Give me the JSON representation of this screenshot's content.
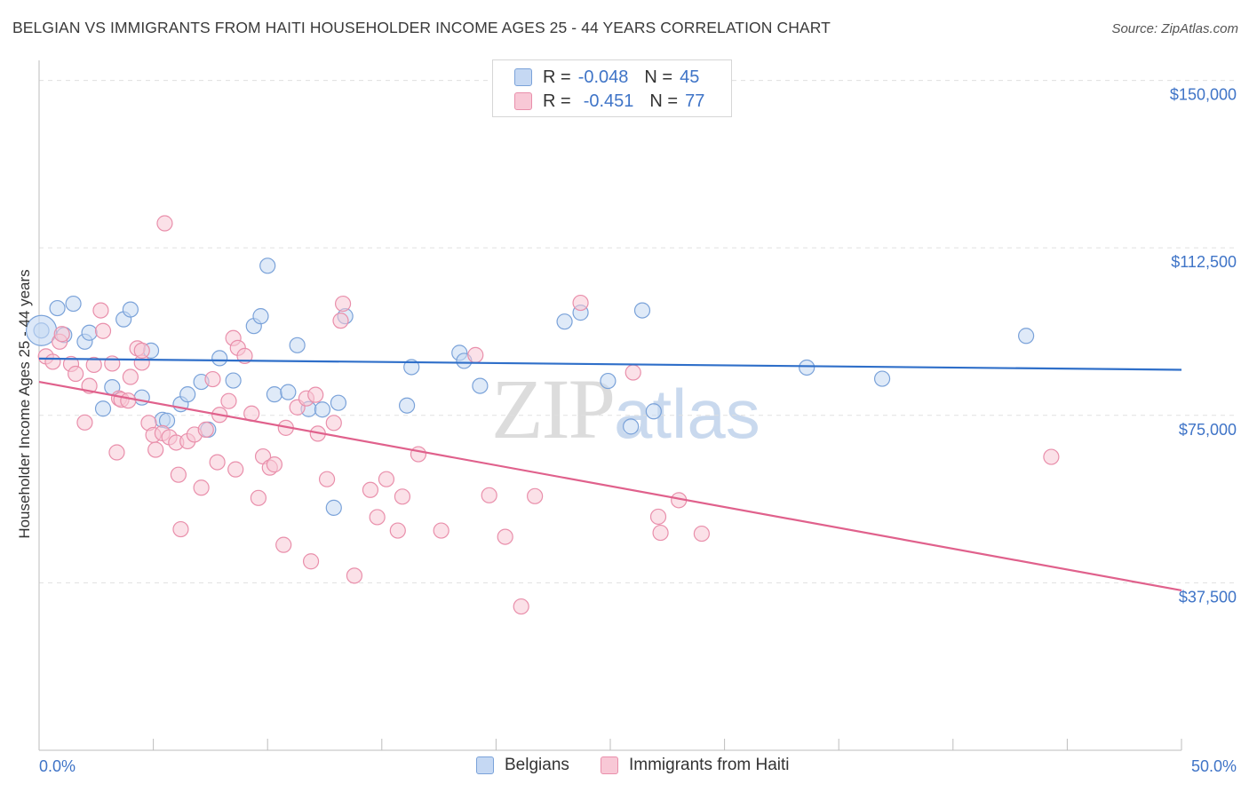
{
  "title": "BELGIAN VS IMMIGRANTS FROM HAITI HOUSEHOLDER INCOME AGES 25 - 44 YEARS CORRELATION CHART",
  "source": "Source: ZipAtlas.com",
  "watermark": {
    "zip": "ZIP",
    "atlas": "atlas"
  },
  "legend": {
    "rows": [
      {
        "r_label": "R =",
        "r_value": "-0.048",
        "n_label": "N =",
        "n_value": "45"
      },
      {
        "r_label": "R =",
        "r_value": "-0.451",
        "n_label": "N =",
        "n_value": "77"
      }
    ]
  },
  "colors": {
    "belgians_fill": "#c5d8f3",
    "belgians_stroke": "#7aa2d9",
    "belgians_line": "#2f6fc9",
    "haiti_fill": "#f8c8d6",
    "haiti_stroke": "#e98fab",
    "haiti_line": "#e0618c",
    "tick_label": "#3f74c7",
    "grid": "#e0e0e0"
  },
  "chart_data": {
    "type": "scatter",
    "title": "BELGIAN VS IMMIGRANTS FROM HAITI HOUSEHOLDER INCOME AGES 25 - 44 YEARS CORRELATION CHART",
    "xlabel": "",
    "ylabel": "Householder Income Ages 25 - 44 years",
    "xlim": [
      0,
      50
    ],
    "ylim": [
      0,
      152500
    ],
    "x_tick_labels": [
      "0.0%",
      "50.0%"
    ],
    "y_ticks": [
      37500,
      75000,
      112500,
      150000
    ],
    "y_tick_labels": [
      "$37,500",
      "$75,000",
      "$112,500",
      "$150,000"
    ],
    "grid": true,
    "legend_position": "top-center",
    "series": [
      {
        "name": "Belgians",
        "r": -0.048,
        "n": 45,
        "trend": {
          "x": [
            0,
            50
          ],
          "y": [
            87700,
            85200
          ]
        },
        "points": [
          [
            0.1,
            94000
          ],
          [
            0.8,
            99000
          ],
          [
            1.5,
            100000
          ],
          [
            1.1,
            93000
          ],
          [
            2.0,
            91500
          ],
          [
            2.2,
            93500
          ],
          [
            3.7,
            96500
          ],
          [
            4.0,
            98700
          ],
          [
            4.9,
            89500
          ],
          [
            3.2,
            81300
          ],
          [
            2.8,
            76500
          ],
          [
            4.5,
            79000
          ],
          [
            5.4,
            74000
          ],
          [
            5.6,
            73800
          ],
          [
            6.2,
            77500
          ],
          [
            6.5,
            79700
          ],
          [
            7.1,
            82500
          ],
          [
            7.4,
            71800
          ],
          [
            7.9,
            87800
          ],
          [
            8.5,
            82800
          ],
          [
            9.4,
            95000
          ],
          [
            9.7,
            97200
          ],
          [
            10.0,
            108500
          ],
          [
            10.3,
            79700
          ],
          [
            10.9,
            80200
          ],
          [
            11.3,
            90700
          ],
          [
            11.8,
            76400
          ],
          [
            12.4,
            76300
          ],
          [
            13.1,
            77800
          ],
          [
            12.9,
            54300
          ],
          [
            13.4,
            97200
          ],
          [
            16.3,
            85800
          ],
          [
            16.1,
            77200
          ],
          [
            18.4,
            89000
          ],
          [
            18.6,
            87200
          ],
          [
            19.3,
            81600
          ],
          [
            23.0,
            96000
          ],
          [
            23.7,
            98000
          ],
          [
            24.9,
            82700
          ],
          [
            25.9,
            72500
          ],
          [
            26.4,
            98500
          ],
          [
            26.9,
            75900
          ],
          [
            33.6,
            85700
          ],
          [
            36.9,
            83200
          ],
          [
            43.2,
            92800
          ]
        ]
      },
      {
        "name": "Immigrants from Haiti",
        "r": -0.451,
        "n": 77,
        "trend": {
          "x": [
            0,
            50
          ],
          "y": [
            82500,
            35800
          ]
        },
        "points": [
          [
            0.3,
            88200
          ],
          [
            0.6,
            87000
          ],
          [
            0.9,
            91500
          ],
          [
            1.0,
            93200
          ],
          [
            1.4,
            86500
          ],
          [
            1.6,
            84300
          ],
          [
            2.0,
            73400
          ],
          [
            2.2,
            81600
          ],
          [
            2.4,
            86300
          ],
          [
            2.7,
            98500
          ],
          [
            2.8,
            93900
          ],
          [
            3.2,
            86600
          ],
          [
            3.4,
            66700
          ],
          [
            3.5,
            78800
          ],
          [
            3.6,
            78500
          ],
          [
            3.9,
            78300
          ],
          [
            4.0,
            83600
          ],
          [
            4.3,
            90000
          ],
          [
            4.5,
            86800
          ],
          [
            4.5,
            89500
          ],
          [
            4.8,
            73300
          ],
          [
            5.0,
            70600
          ],
          [
            5.1,
            67300
          ],
          [
            5.4,
            71000
          ],
          [
            5.5,
            118000
          ],
          [
            5.7,
            70100
          ],
          [
            6.0,
            68900
          ],
          [
            6.1,
            61700
          ],
          [
            6.2,
            49500
          ],
          [
            6.5,
            69200
          ],
          [
            6.8,
            70700
          ],
          [
            7.1,
            58800
          ],
          [
            7.3,
            71800
          ],
          [
            7.6,
            83100
          ],
          [
            7.8,
            64500
          ],
          [
            7.9,
            75100
          ],
          [
            8.3,
            78200
          ],
          [
            8.5,
            92300
          ],
          [
            8.6,
            62900
          ],
          [
            8.7,
            90100
          ],
          [
            9.0,
            88300
          ],
          [
            9.3,
            75400
          ],
          [
            9.6,
            56500
          ],
          [
            9.8,
            65800
          ],
          [
            10.1,
            63300
          ],
          [
            10.3,
            64000
          ],
          [
            10.7,
            46000
          ],
          [
            10.8,
            72200
          ],
          [
            11.3,
            76800
          ],
          [
            11.7,
            78800
          ],
          [
            11.9,
            42300
          ],
          [
            12.1,
            79600
          ],
          [
            12.2,
            70900
          ],
          [
            12.6,
            60700
          ],
          [
            12.9,
            73300
          ],
          [
            13.2,
            96200
          ],
          [
            13.3,
            100000
          ],
          [
            13.8,
            39100
          ],
          [
            14.5,
            58300
          ],
          [
            14.8,
            52200
          ],
          [
            15.2,
            60700
          ],
          [
            15.7,
            49200
          ],
          [
            15.9,
            56800
          ],
          [
            16.6,
            66300
          ],
          [
            17.6,
            49200
          ],
          [
            19.1,
            88500
          ],
          [
            19.7,
            57100
          ],
          [
            20.4,
            47800
          ],
          [
            21.7,
            56900
          ],
          [
            21.1,
            32200
          ],
          [
            23.7,
            100200
          ],
          [
            26.0,
            84600
          ],
          [
            27.1,
            52300
          ],
          [
            27.2,
            48700
          ],
          [
            28.0,
            56000
          ],
          [
            29.0,
            48500
          ],
          [
            44.3,
            65700
          ]
        ]
      }
    ]
  },
  "bottom_legend": [
    "Belgians",
    "Immigrants from Haiti"
  ]
}
